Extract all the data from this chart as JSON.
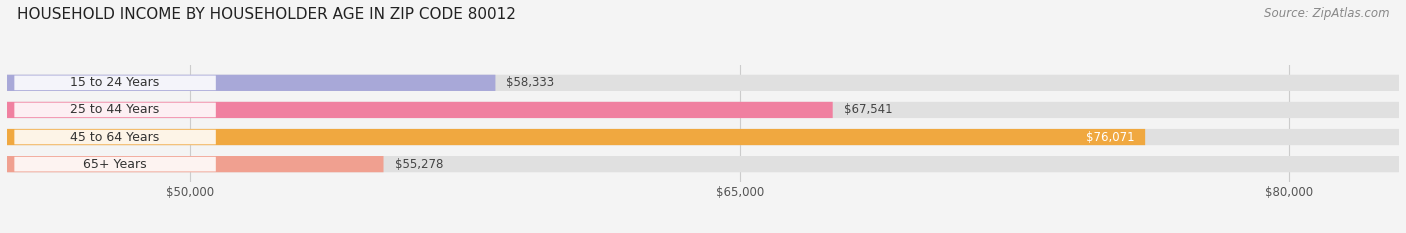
{
  "title": "HOUSEHOLD INCOME BY HOUSEHOLDER AGE IN ZIP CODE 80012",
  "source": "Source: ZipAtlas.com",
  "categories": [
    "15 to 24 Years",
    "25 to 44 Years",
    "45 to 64 Years",
    "65+ Years"
  ],
  "values": [
    58333,
    67541,
    76071,
    55278
  ],
  "bar_colors": [
    "#a8a8d8",
    "#f080a0",
    "#f0a840",
    "#f0a090"
  ],
  "bar_labels": [
    "$58,333",
    "$67,541",
    "$76,071",
    "$55,278"
  ],
  "label_white": [
    false,
    false,
    true,
    false
  ],
  "xmin": 45000,
  "xmax": 83000,
  "xticks": [
    50000,
    65000,
    80000
  ],
  "xtick_labels": [
    "$50,000",
    "$65,000",
    "$80,000"
  ],
  "background_color": "#f4f4f4",
  "bar_bg_color": "#e0e0e0",
  "title_fontsize": 11,
  "source_fontsize": 8.5,
  "label_fontsize": 8.5,
  "tick_fontsize": 8.5,
  "cat_fontsize": 9
}
